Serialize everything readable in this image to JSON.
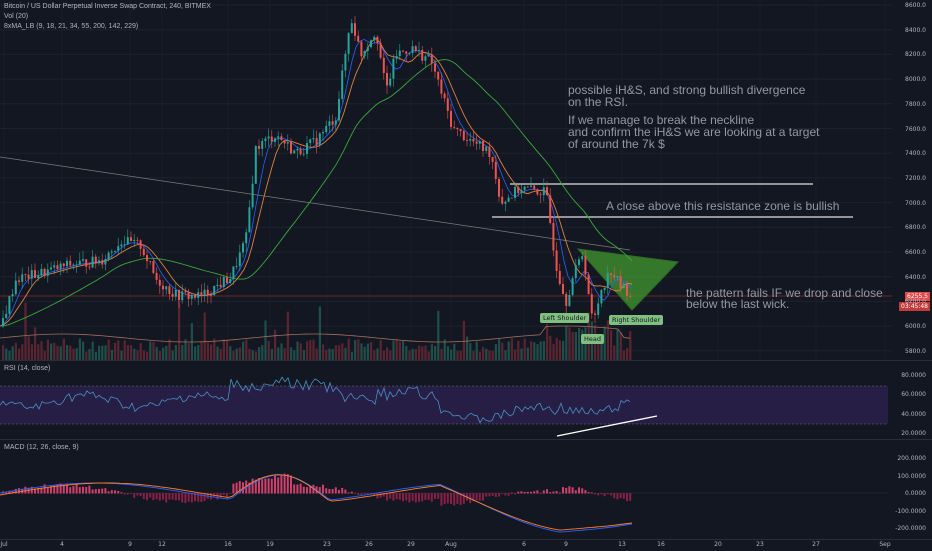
{
  "header": {
    "symbol": "Bitcoin / US Dollar Perpetual Inverse Swap Contract, 240, BITMEX",
    "vol": "Vol (20)",
    "ma": "8xMA_LB (9, 18, 21, 34, 55, 200, 142, 229)"
  },
  "annotations": {
    "divergence_line1": "possible iH&S, and strong bullish divergence",
    "divergence_line2": "on the RSI.",
    "neckline_line1": "If we manage to break the neckline",
    "neckline_line2": "and confirm the iH&S we are looking at a target",
    "neckline_line3": "of around the 7k $",
    "resistance": "A close above this resistance zone is bullish",
    "fail_line1": "the pattern fails IF we drop and close",
    "fail_line2": "below the last wick."
  },
  "pattern_labels": {
    "left_shoulder": "Left Shoulder",
    "head": "Head",
    "right_shoulder": "Right Shoulder"
  },
  "price_axis": [
    "8600.0",
    "8400.0",
    "8200.0",
    "8000.0",
    "7800.0",
    "7600.0",
    "7400.0",
    "7200.0",
    "7000.0",
    "6800.0",
    "6600.0",
    "6400.0",
    "6200.0",
    "6000.0",
    "5800.0"
  ],
  "price_tag": "6255.5",
  "price_tag2": "03:45:48",
  "rsi": {
    "title": "RSI (14, close)",
    "axis": [
      "80.0000",
      "60.0000",
      "40.0000",
      "20.0000"
    ]
  },
  "macd": {
    "title": "MACD (12, 26, close, 9)",
    "axis": [
      "200.0000",
      "100.0000",
      "0.0000",
      "-100.0000",
      "-200.0000"
    ]
  },
  "time_axis": [
    "Jul",
    "4",
    "9",
    "12",
    "16",
    "19",
    "23",
    "26",
    "29",
    "Aug",
    "6",
    "9",
    "13",
    "16",
    "20",
    "23",
    "27",
    "Sep"
  ],
  "colors": {
    "background": "#131722",
    "up": "#26a69a",
    "down": "#ef5350",
    "rsi_band": "#2a1f4a",
    "triangle": "#3c8a2e"
  }
}
